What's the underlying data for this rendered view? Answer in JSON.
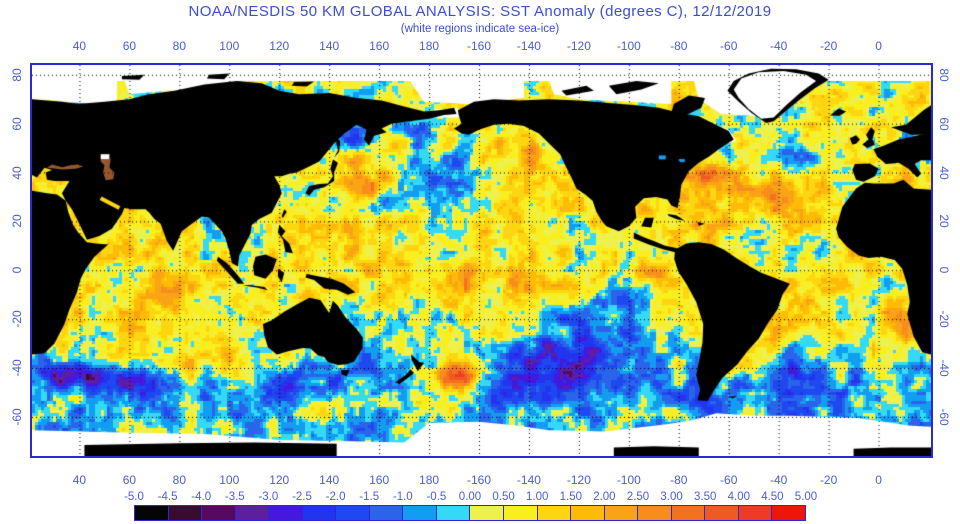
{
  "header": {
    "title": "NOAA/NESDIS 50 KM GLOBAL ANALYSIS: SST Anomaly (degrees C), 12/12/2019",
    "subtitle": "(white regions indicate sea-ice)"
  },
  "colors": {
    "title_text": "#3c4ed2",
    "axis_label": "#4a5cd8",
    "frame": "#2a2ad0",
    "land": "#000000",
    "sea_ice": "#ffffff",
    "inland_sea": "#96572e",
    "grid": "#000000"
  },
  "chart_data": {
    "type": "heatmap",
    "title": "NOAA/NESDIS 50 KM GLOBAL ANALYSIS: SST Anomaly (degrees C), 12/12/2019",
    "subtitle": "(white regions indicate sea-ice)",
    "date": "12/12/2019",
    "units": "degrees C",
    "projection": "equirectangular, longitude wraps 360 deg starting near 21E",
    "lon_axis": {
      "ticks": [
        40,
        60,
        80,
        100,
        120,
        140,
        160,
        180,
        -160,
        -140,
        -120,
        -100,
        -80,
        -60,
        -40,
        -20,
        0
      ],
      "shown": "top and bottom"
    },
    "lat_axis": {
      "ticks": [
        80,
        60,
        40,
        20,
        0,
        -20,
        -40,
        -60
      ],
      "shown": "left and right, rotated"
    },
    "lon_range_deg_east": [
      21,
      381
    ],
    "lat_range": [
      -76,
      84
    ],
    "grid": {
      "style": "dotted",
      "interval_deg": 20,
      "on": true
    },
    "colorbar": {
      "range": [
        -5,
        5
      ],
      "step": 0.5,
      "labels": [
        "-5.0",
        "-4.5",
        "-4.0",
        "-3.5",
        "-3.0",
        "-2.5",
        "-2.0",
        "-1.5",
        "-1.0",
        "-0.5",
        "0.00",
        "0.50",
        "1.00",
        "1.50",
        "2.00",
        "2.50",
        "3.00",
        "3.50",
        "4.00",
        "4.50",
        "5.00"
      ],
      "cell_colors": [
        "#050508",
        "#3a0b2e",
        "#550a60",
        "#5e1f9e",
        "#4617dd",
        "#2334ee",
        "#1e49f0",
        "#2a64ea",
        "#129df2",
        "#33d9f5",
        "#eef04d",
        "#f9ee1e",
        "#fdd511",
        "#fdbb06",
        "#f8a414",
        "#f78e1b",
        "#f4711d",
        "#ef5a24",
        "#ee3b28",
        "#ee1609"
      ]
    },
    "legend_note": "white regions indicate sea-ice; black is land; brown marks Black/Caspian seas",
    "anomaly_features": [
      {
        "region": "kuroshio-warm",
        "lon": 152,
        "lat": 37,
        "sx": 9,
        "sy": 4.5,
        "anomaly_c": 2.3
      },
      {
        "region": "okhotsk-cold",
        "lon": 148,
        "lat": 55,
        "sx": 7,
        "sy": 4,
        "anomaly_c": -1.6
      },
      {
        "region": "npac-central-cold",
        "lon": 186,
        "lat": 37,
        "sx": 13,
        "sy": 8,
        "anomaly_c": -1.9
      },
      {
        "region": "bering-cold",
        "lon": 178,
        "lat": 57,
        "sx": 9,
        "sy": 4,
        "anomaly_c": -0.9
      },
      {
        "region": "npac-ne-warm",
        "lon": 214,
        "lat": 46,
        "sx": 11,
        "sy": 6,
        "anomaly_c": 1.3
      },
      {
        "region": "california-warm",
        "lon": 233,
        "lat": 31,
        "sx": 9,
        "sy": 7,
        "anomaly_c": 1.1
      },
      {
        "region": "eq-pacific-warm",
        "lon": 205,
        "lat": -4,
        "sx": 32,
        "sy": 8,
        "anomaly_c": 1.1
      },
      {
        "region": "galapagos-warm",
        "lon": 268,
        "lat": -1,
        "sx": 6,
        "sy": 3,
        "anomaly_c": 1.6
      },
      {
        "region": "se-pacific-cold",
        "lon": 252,
        "lat": -22,
        "sx": 18,
        "sy": 13,
        "anomaly_c": -1.4
      },
      {
        "region": "w-pacific-warm",
        "lon": 148,
        "lat": 8,
        "sx": 14,
        "sy": 9,
        "anomaly_c": 0.7
      },
      {
        "region": "s-pacific-cold-pool",
        "lon": 224,
        "lat": -39,
        "sx": 21,
        "sy": 11,
        "anomaly_c": -2.3
      },
      {
        "region": "nz-east-warm-blob",
        "lon": 192,
        "lat": -43,
        "sx": 7,
        "sy": 4.5,
        "anomaly_c": 4.2
      },
      {
        "region": "tasman-cold",
        "lon": 159,
        "lat": -42,
        "sx": 6,
        "sy": 5,
        "anomaly_c": -1.3
      },
      {
        "region": "s-australia-cold",
        "lon": 127,
        "lat": -46,
        "sx": 11,
        "sy": 5,
        "anomaly_c": -1.6
      },
      {
        "region": "s-indian-warm",
        "lon": 90,
        "lat": -38,
        "sx": 16,
        "sy": 6,
        "anomaly_c": 1.2
      },
      {
        "region": "indian-warm",
        "lon": 73,
        "lat": -14,
        "sx": 18,
        "sy": 11,
        "anomaly_c": 0.9
      },
      {
        "region": "arabian-mixed",
        "lon": 63,
        "lat": 14,
        "sx": 9,
        "sy": 6,
        "anomaly_c": 0.5
      },
      {
        "region": "agulhas-cold",
        "lon": 38,
        "lat": -43,
        "sx": 11,
        "sy": 3.5,
        "anomaly_c": -3.2
      },
      {
        "region": "agulhas-cold-2",
        "lon": 62,
        "lat": -46,
        "sx": 11,
        "sy": 4,
        "anomaly_c": -1.7
      },
      {
        "region": "southern-ocean-warm",
        "lon": 170,
        "lat": -57,
        "sx": 25,
        "sy": 4,
        "anomaly_c": 0.9
      },
      {
        "region": "gulf-stream-warm",
        "lon": 293,
        "lat": 39,
        "sx": 11,
        "sy": 3,
        "anomaly_c": 2.8
      },
      {
        "region": "n-atlantic-cold",
        "lon": 325,
        "lat": 47,
        "sx": 11,
        "sy": 7,
        "anomaly_c": -1.3
      },
      {
        "region": "n-atlantic-warm",
        "lon": 322,
        "lat": 28,
        "sx": 16,
        "sy": 8,
        "anomaly_c": 1.2
      },
      {
        "region": "gulf-of-mexico-warm",
        "lon": 265,
        "lat": 25,
        "sx": 8,
        "sy": 4,
        "anomaly_c": 0.9
      },
      {
        "region": "caribbean-warm",
        "lon": 285,
        "lat": 16,
        "sx": 10,
        "sy": 4,
        "anomaly_c": 0.7
      },
      {
        "region": "s-atlantic-cold",
        "lon": 322,
        "lat": -43,
        "sx": 15,
        "sy": 8,
        "anomaly_c": -1.7
      },
      {
        "region": "argentine-warm",
        "lon": 306,
        "lat": -39,
        "sx": 5,
        "sy": 3.5,
        "anomaly_c": 2.0
      },
      {
        "region": "brazil-warm",
        "lon": 316,
        "lat": -27,
        "sx": 8,
        "sy": 6,
        "anomaly_c": 0.9
      },
      {
        "region": "benguela-warm",
        "lon": 369,
        "lat": -25,
        "sx": 7,
        "sy": 7,
        "anomaly_c": 1.6
      },
      {
        "region": "drake-cold",
        "lon": 294,
        "lat": -56,
        "sx": 9,
        "sy": 4,
        "anomaly_c": -1.4
      },
      {
        "region": "east-med-warm",
        "lon": 28,
        "lat": 34,
        "sx": 7,
        "sy": 3,
        "anomaly_c": 1.3
      },
      {
        "region": "west-med-warm",
        "lon": 370,
        "lat": 37,
        "sx": 6,
        "sy": 2.5,
        "anomaly_c": 1.1
      },
      {
        "region": "norwegian-warm",
        "lon": 370,
        "lat": 66,
        "sx": 8,
        "sy": 4,
        "anomaly_c": 0.9
      },
      {
        "region": "barents-mixed",
        "lon": 45,
        "lat": 73,
        "sx": 9,
        "sy": 3.5,
        "anomaly_c": -0.4
      },
      {
        "region": "eq-atlantic-warm",
        "lon": 350,
        "lat": 0,
        "sx": 15,
        "sy": 8,
        "anomaly_c": 0.6
      }
    ]
  }
}
